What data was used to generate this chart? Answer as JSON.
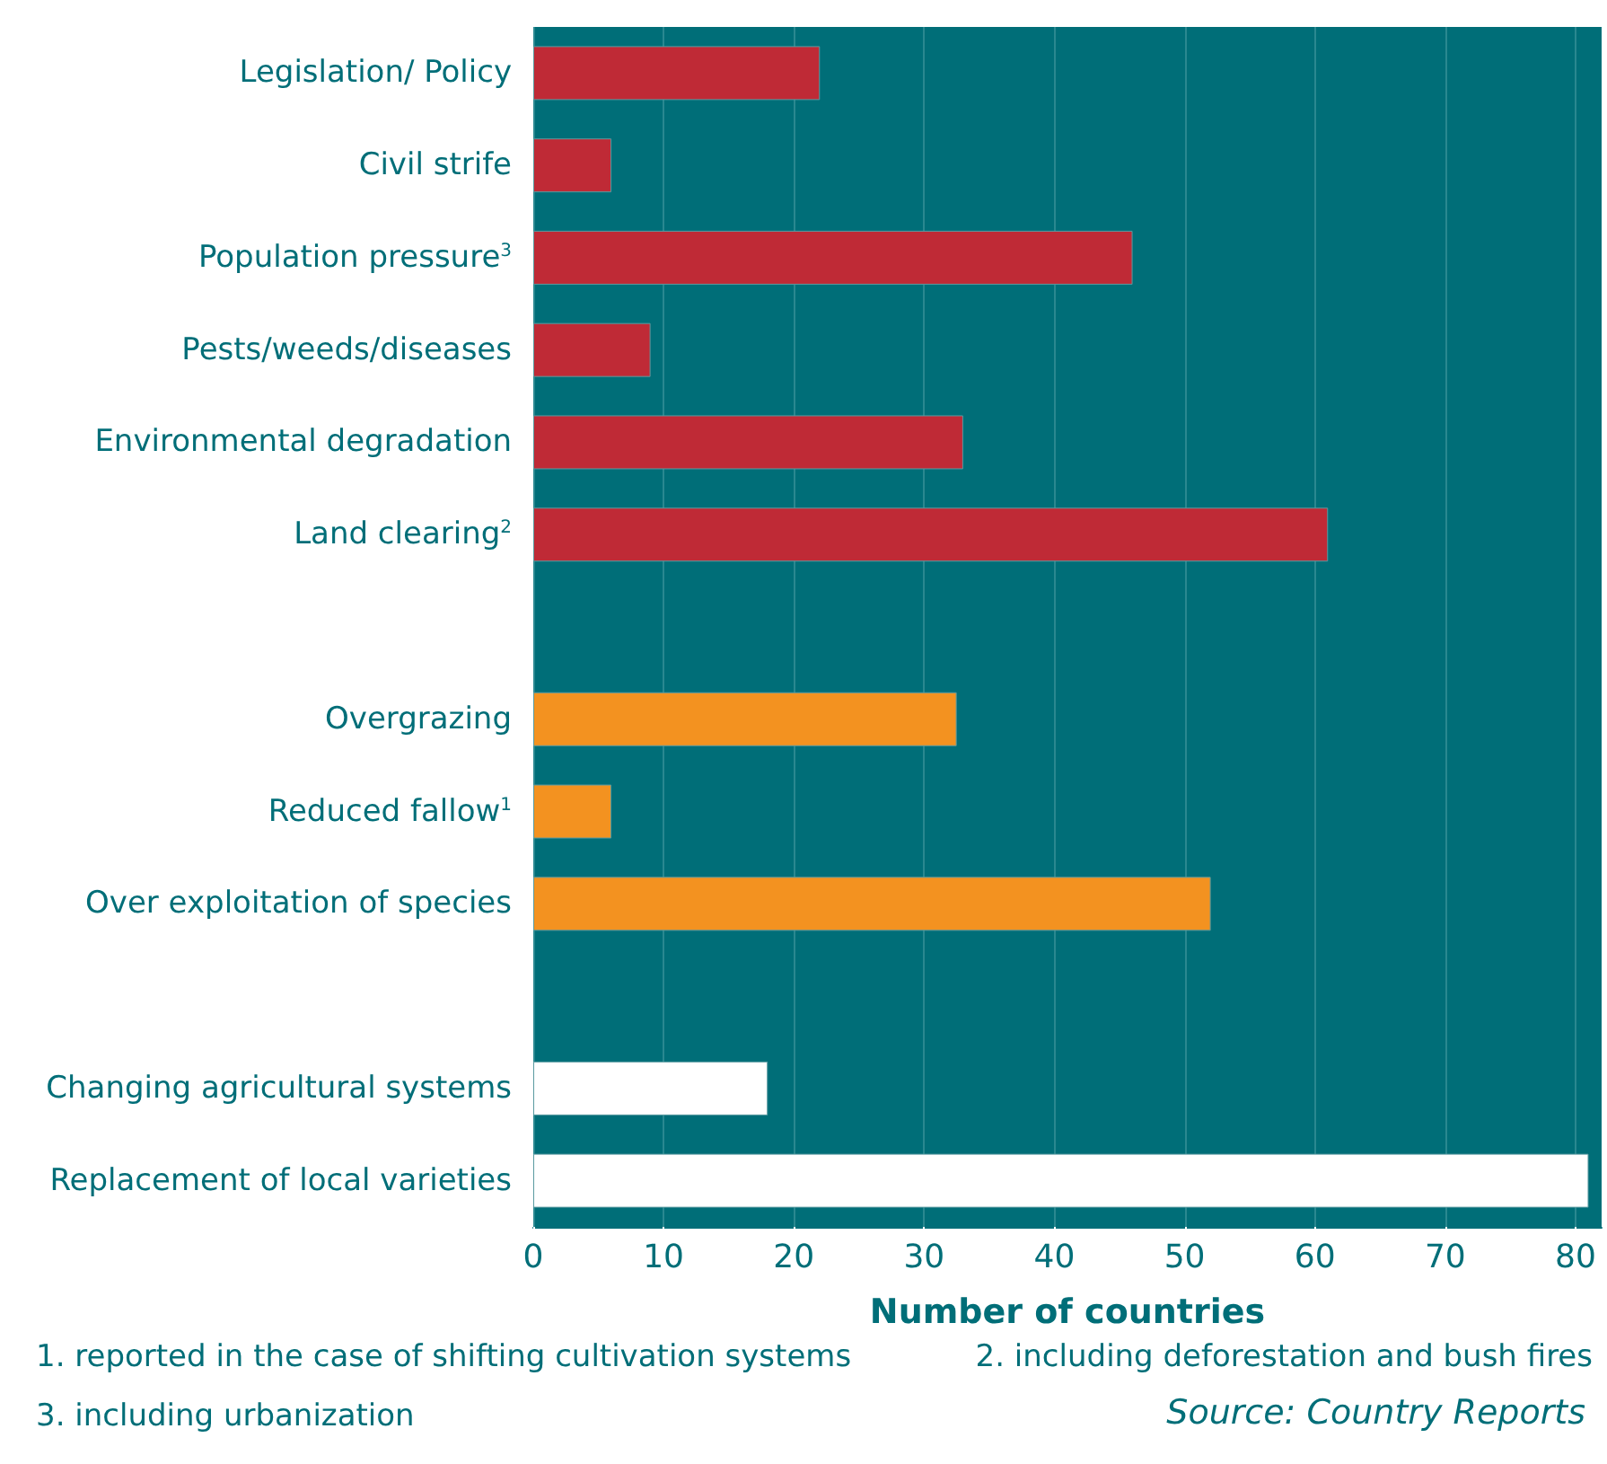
{
  "chart_data": {
    "type": "bar",
    "orientation": "horizontal",
    "xlabel": "Number of countries",
    "categories": [
      "Legislation/ Policy",
      "Civil strife",
      "Population pressure$^{3}$",
      "Pests/weeds/diseases",
      "Environmental degradation",
      "Land clearing$^{2}$",
      null,
      "Overgrazing",
      "Reduced fallow$^{1}$",
      "Over exploitation of species",
      null,
      "Changing agricultural systems",
      "Replacement of local varieties"
    ],
    "values": [
      22,
      6,
      46,
      9,
      33,
      61,
      null,
      32.5,
      6,
      52,
      null,
      18,
      81
    ],
    "colors": [
      "#bf2a36",
      "#bf2a36",
      "#bf2a36",
      "#bf2a36",
      "#bf2a36",
      "#bf2a36",
      null,
      "#f39220",
      "#f39220",
      "#f39220",
      null,
      "#ffffff",
      "#ffffff"
    ],
    "xlim": [
      0,
      82
    ],
    "xticks": [
      0,
      10,
      20,
      30,
      40,
      50,
      60,
      70,
      80
    ],
    "grid": "x",
    "annotations": [
      "1. reported in the case of shifting cultivation systems",
      "2. including deforestation and bush fires",
      "3. including urbanization",
      "Source: Country Reports"
    ]
  }
}
